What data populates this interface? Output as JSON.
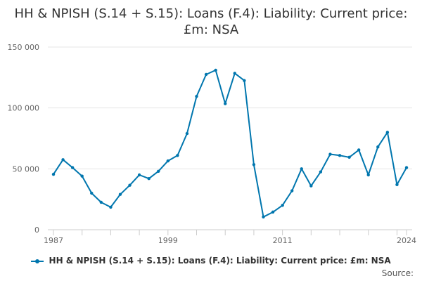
{
  "chart_data": {
    "type": "line",
    "title": "HH & NPISH (S.14 + S.15): Loans (F.4): Liability: Current price: £m: NSA",
    "xlabel": "",
    "ylabel": "",
    "ylim": [
      0,
      150000
    ],
    "xlim": [
      1987,
      2024
    ],
    "y_ticks": [
      0,
      50000,
      100000,
      150000
    ],
    "y_tick_labels": [
      "0",
      "50 000",
      "100 000",
      "150 000"
    ],
    "x_ticks": [
      1987,
      1999,
      2011,
      2024
    ],
    "x_tick_labels": [
      "1987",
      "1999",
      "2011",
      "2024"
    ],
    "grid": "horizontal",
    "legend_position": "bottom",
    "color": "#0076ae",
    "series": [
      {
        "name": "HH & NPISH (S.14 + S.15): Loans (F.4): Liability: Current price: £m: NSA",
        "x": [
          1987,
          1988,
          1989,
          1990,
          1991,
          1992,
          1993,
          1994,
          1995,
          1996,
          1997,
          1998,
          1999,
          2000,
          2001,
          2002,
          2003,
          2004,
          2005,
          2006,
          2007,
          2008,
          2009,
          2010,
          2011,
          2012,
          2013,
          2014,
          2015,
          2016,
          2017,
          2018,
          2019,
          2020,
          2021,
          2022,
          2023,
          2024
        ],
        "values": [
          45500,
          57500,
          51000,
          44000,
          30000,
          22500,
          18500,
          29000,
          36500,
          45000,
          42000,
          48000,
          56500,
          61000,
          79000,
          109500,
          127500,
          131000,
          103500,
          128500,
          122500,
          53500,
          10500,
          14500,
          20000,
          32000,
          50000,
          36000,
          47500,
          62000,
          61000,
          59500,
          65500,
          45000,
          68000,
          80000,
          37000,
          51000
        ]
      }
    ]
  },
  "source_label": "Source:"
}
